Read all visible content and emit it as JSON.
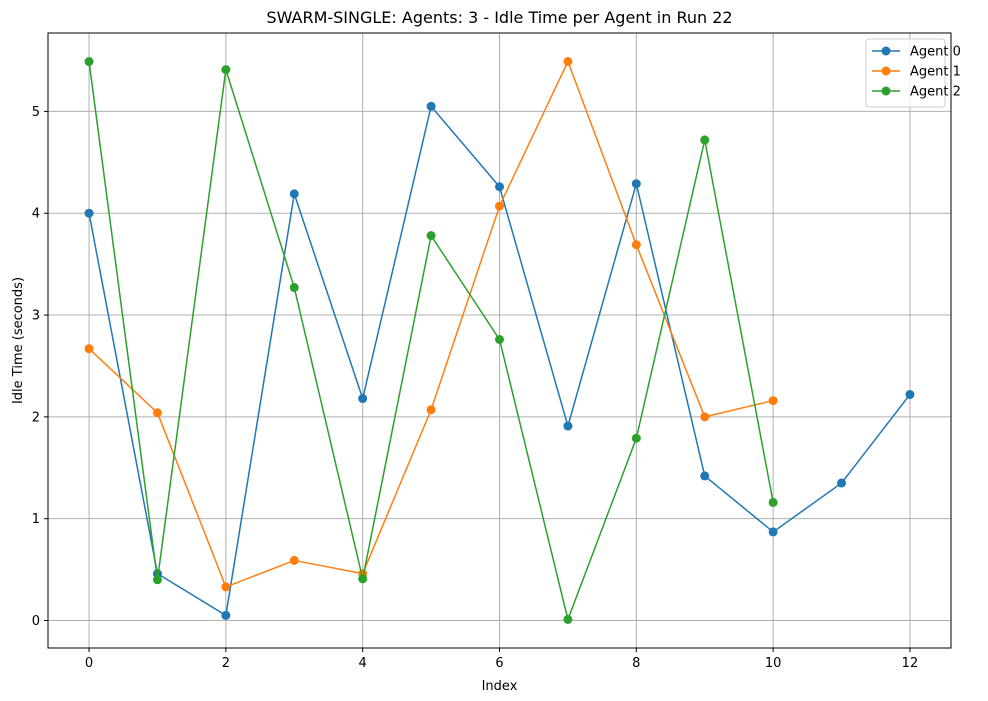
{
  "chart_data": {
    "type": "line",
    "title": "SWARM-SINGLE: Agents: 3 - Idle Time per Agent in Run 22",
    "xlabel": "Index",
    "ylabel": "Idle Time (seconds)",
    "xlim": [
      -0.6,
      12.6
    ],
    "ylim": [
      -0.27,
      5.77
    ],
    "xticks": [
      0,
      2,
      4,
      6,
      8,
      10,
      12
    ],
    "yticks": [
      0,
      1,
      2,
      3,
      4,
      5
    ],
    "grid": true,
    "legend_position": "top-right",
    "series": [
      {
        "name": "Agent 0",
        "color": "#1f77b4",
        "x": [
          0,
          1,
          2,
          3,
          4,
          5,
          6,
          7,
          8,
          9,
          10,
          11,
          12
        ],
        "values": [
          4.0,
          0.46,
          0.05,
          4.19,
          2.18,
          5.05,
          4.26,
          1.91,
          4.29,
          1.42,
          0.87,
          1.35,
          2.22
        ]
      },
      {
        "name": "Agent 1",
        "color": "#ff7f0e",
        "x": [
          0,
          1,
          2,
          3,
          4,
          5,
          6,
          7,
          8,
          9,
          10
        ],
        "values": [
          2.67,
          2.04,
          0.33,
          0.59,
          0.46,
          2.07,
          4.07,
          5.49,
          3.69,
          2.0,
          2.16
        ]
      },
      {
        "name": "Agent 2",
        "color": "#2ca02c",
        "x": [
          0,
          1,
          2,
          3,
          4,
          5,
          6,
          7,
          8,
          9,
          10
        ],
        "values": [
          5.49,
          0.4,
          5.41,
          3.27,
          0.41,
          3.78,
          2.76,
          0.01,
          1.79,
          4.72,
          1.16
        ]
      }
    ]
  }
}
